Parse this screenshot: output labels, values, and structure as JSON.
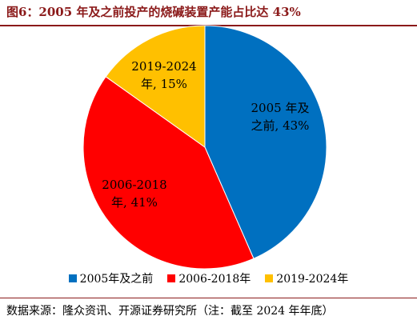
{
  "title": "图6：2005 年及之前投产的烧碱装置产能占比达 43%",
  "source": "数据来源：隆众资讯、开源证券研究所（注：截至 2024 年年底）",
  "chart_data": {
    "type": "pie",
    "slices": [
      {
        "label": "2005年及之前",
        "value": 43,
        "color": "#0070c0",
        "data_label_line1": "2005 年及",
        "data_label_line2": "之前, 43%"
      },
      {
        "label": "2006-2018年",
        "value": 41,
        "color": "#ff0000",
        "data_label_line1": "2006-2018",
        "data_label_line2": "年, 41%"
      },
      {
        "label": "2019-2024年",
        "value": 15,
        "color": "#ffc000",
        "data_label_line1": "2019-2024",
        "data_label_line2": "年, 15%"
      }
    ],
    "legend": [
      "2005年及之前",
      "2006-2018年",
      "2019-2024年"
    ],
    "legend_position": "bottom"
  }
}
